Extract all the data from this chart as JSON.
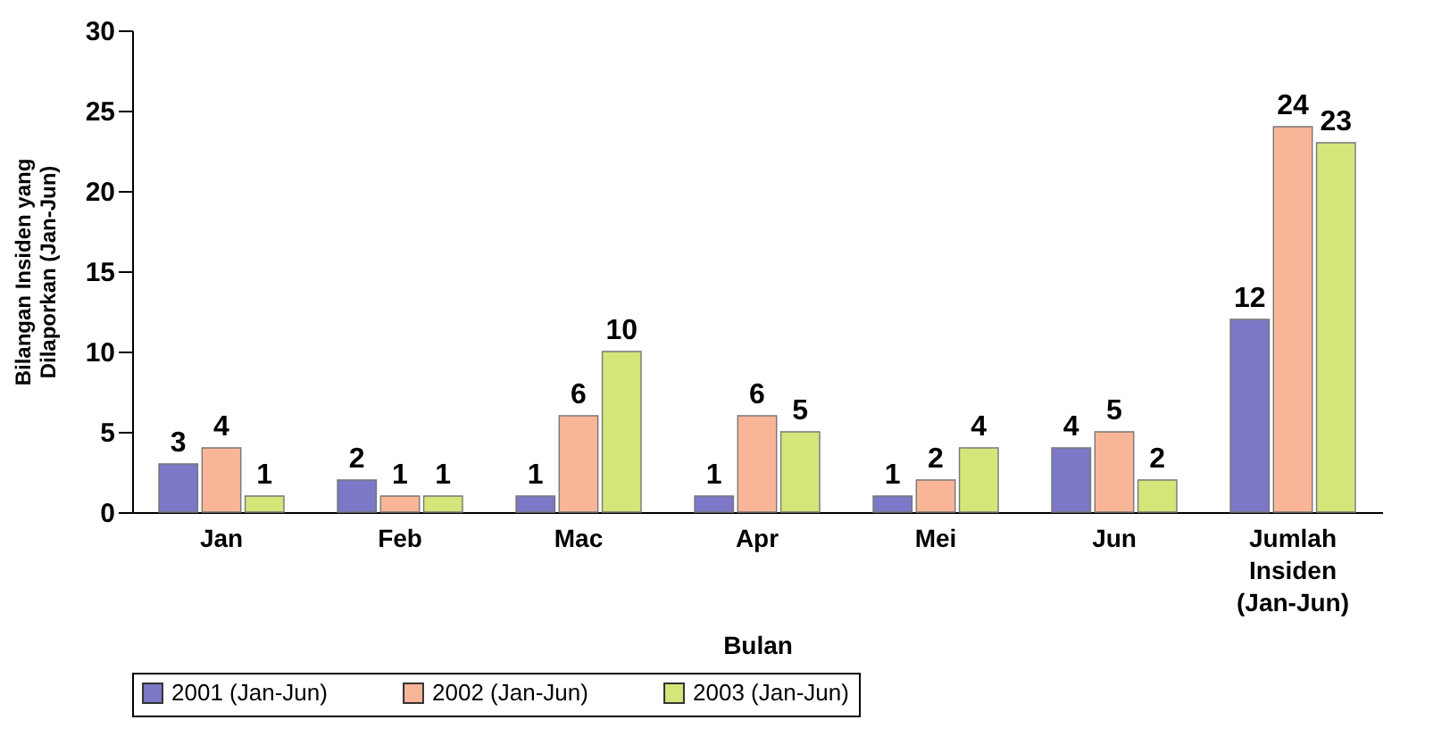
{
  "chart_data": {
    "type": "bar",
    "xlabel": "Bulan",
    "ylabel": "Bilangan Insiden yang\nDilaporkan (Jan-Jun)",
    "categories": [
      "Jan",
      "Feb",
      "Mac",
      "Apr",
      "Mei",
      "Jun",
      "Jumlah Insiden (Jan-Jun)"
    ],
    "series": [
      {
        "name": "2001 (Jan-Jun)",
        "color": "#7b78c8",
        "values": [
          3,
          2,
          1,
          1,
          1,
          4,
          12
        ]
      },
      {
        "name": "2002 (Jan-Jun)",
        "color": "#f9b597",
        "values": [
          4,
          1,
          6,
          6,
          2,
          5,
          24
        ]
      },
      {
        "name": "2003 (Jan-Jun)",
        "color": "#d4e67a",
        "values": [
          1,
          1,
          10,
          5,
          4,
          2,
          23
        ]
      }
    ],
    "ylim": [
      0,
      30
    ],
    "yticks": [
      0,
      5,
      10,
      15,
      20,
      25,
      30
    ],
    "data_labels": true,
    "legend": "bottom"
  }
}
